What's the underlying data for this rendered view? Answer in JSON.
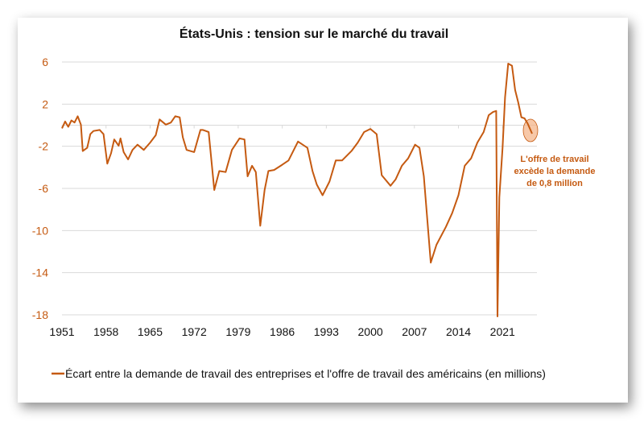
{
  "chart_data": {
    "type": "line",
    "title": "États-Unis : tension sur le marché du travail",
    "xlabel": "",
    "ylabel": "",
    "ylim": [
      -18,
      6
    ],
    "xlim": [
      1951,
      2025.7
    ],
    "yticks": [
      6,
      2,
      -2,
      -6,
      -10,
      -14,
      -18
    ],
    "xticks": [
      1951,
      1958,
      1965,
      1972,
      1979,
      1986,
      1993,
      2000,
      2007,
      2014,
      2021
    ],
    "grid": true,
    "legend_position": "bottom",
    "colors": {
      "series": "#C55A11",
      "highlight": "#F4B183"
    },
    "series": [
      {
        "name": "Écart entre la demande de travail des entreprises et l'offre de travail des américains (en millions)",
        "x": [
          1951,
          1951.5,
          1952,
          1952.5,
          1953,
          1953.5,
          1954,
          1954.3,
          1955,
          1955.5,
          1956,
          1957,
          1957.6,
          1958.2,
          1958.8,
          1959.3,
          1960,
          1960.3,
          1960.8,
          1961.5,
          1962.2,
          1963,
          1964,
          1965,
          1965.9,
          1966.5,
          1967.5,
          1968.3,
          1969,
          1969.7,
          1970.2,
          1970.8,
          1972,
          1973,
          1973.4,
          1974.3,
          1975.2,
          1976,
          1977,
          1978,
          1979.2,
          1980,
          1980.5,
          1981.2,
          1981.8,
          1982.5,
          1983.2,
          1983.8,
          1984.7,
          1986,
          1987,
          1988.5,
          1990,
          1990.8,
          1991.5,
          1992.4,
          1993.5,
          1994.5,
          1995.5,
          1997,
          1998,
          1999,
          2000,
          2001,
          2001.8,
          2003.2,
          2004,
          2005,
          2006,
          2007.1,
          2007.8,
          2008.5,
          2009.6,
          2010.5,
          2012,
          2013,
          2014,
          2015,
          2016,
          2017,
          2018,
          2018.8,
          2019.5,
          2020.0,
          2020.2,
          2020.5,
          2021,
          2021.4,
          2021.9,
          2022.5,
          2023,
          2023.5,
          2024,
          2024.5,
          2025,
          2025.7
        ],
        "values": [
          -0.3,
          0.2,
          0.0,
          0.3,
          0.4,
          0.7,
          0.2,
          -2.6,
          -2.0,
          -1.0,
          -0.4,
          -0.6,
          -0.7,
          -3.8,
          -2.5,
          -1.5,
          -1.8,
          -1.4,
          -2.4,
          -3.4,
          -2.2,
          -2.0,
          -2.2,
          -1.8,
          -0.8,
          0.4,
          0.2,
          0.1,
          1.0,
          0.6,
          -1.0,
          -2.5,
          -2.4,
          -0.6,
          -0.3,
          -0.8,
          -6.0,
          -4.5,
          -4.3,
          -2.5,
          -1.1,
          -1.5,
          -4.7,
          -4.0,
          -4.3,
          -9.7,
          -6.0,
          -4.5,
          -4.1,
          -3.9,
          -3.2,
          -1.7,
          -2.0,
          -4.5,
          -5.5,
          -6.8,
          -5.2,
          -3.5,
          -3.2,
          -2.6,
          -1.5,
          -0.8,
          -0.2,
          -1.0,
          -4.6,
          -5.9,
          -5.0,
          -4.0,
          -3.0,
          -2.0,
          -2.0,
          -5.0,
          -12.9,
          -11.5,
          -9.5,
          -8.5,
          -6.5,
          -4.0,
          -3.0,
          -1.8,
          -0.5,
          0.8,
          1.4,
          1.2,
          -18,
          -7,
          -2,
          2.5,
          6.0,
          5.5,
          3.5,
          2.0,
          0.9,
          0.5,
          0.3,
          -0.8
        ]
      }
    ],
    "annotation": {
      "lines": [
        "L'offre de travail",
        "excède la demande",
        "de 0,8 million"
      ],
      "point": [
        2025.7,
        -0.8
      ]
    }
  }
}
